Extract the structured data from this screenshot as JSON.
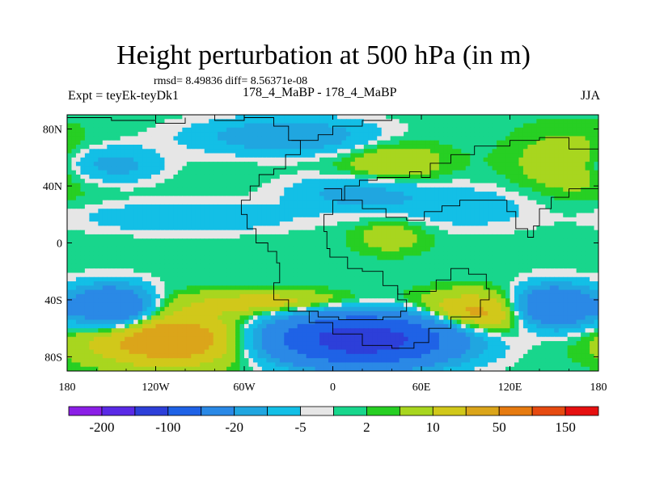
{
  "chart_data": {
    "type": "heatmap",
    "title": "Height perturbation at 500 hPa (in m)",
    "stats_text": "rmsd= 8.49836 diff= 8.56371e-08",
    "left_label": "Expt = teyEk-teyDk1",
    "center_label": "178_4_MaBP - 178_4_MaBP",
    "right_label": "JJA",
    "xlim": [
      -180,
      180
    ],
    "ylim": [
      -90,
      90
    ],
    "x_ticks": [
      {
        "value": -180,
        "label": "180"
      },
      {
        "value": -120,
        "label": "120W"
      },
      {
        "value": -60,
        "label": "60W"
      },
      {
        "value": 0,
        "label": "0"
      },
      {
        "value": 60,
        "label": "60E"
      },
      {
        "value": 120,
        "label": "120E"
      },
      {
        "value": 180,
        "label": "180"
      }
    ],
    "y_ticks": [
      {
        "value": 80,
        "label": "80N"
      },
      {
        "value": 40,
        "label": "40N"
      },
      {
        "value": 0,
        "label": "0"
      },
      {
        "value": -40,
        "label": "40S"
      },
      {
        "value": -80,
        "label": "80S"
      }
    ],
    "colorbar": {
      "colors": [
        "#8b1fe6",
        "#5a2ae6",
        "#2d3fd9",
        "#1f62e6",
        "#2a89e6",
        "#20a6e0",
        "#13bfe6",
        "#e6e6e6",
        "#18d68c",
        "#27cf23",
        "#a8d61f",
        "#d1c81a",
        "#dba51a",
        "#e67b10",
        "#e64a10",
        "#e61010"
      ],
      "labels": [
        {
          "index": 1,
          "text": "-200"
        },
        {
          "index": 3,
          "text": "-100"
        },
        {
          "index": 5,
          "text": "-20"
        },
        {
          "index": 7,
          "text": "-5"
        },
        {
          "index": 9,
          "text": "2"
        },
        {
          "index": 11,
          "text": "10"
        },
        {
          "index": 13,
          "text": "50"
        },
        {
          "index": 15,
          "text": "150"
        }
      ]
    },
    "anomalies": [
      {
        "lon": -150,
        "lat": -45,
        "amp": -40,
        "rlon": 25,
        "rlat": 14
      },
      {
        "lon": 150,
        "lat": -45,
        "amp": -40,
        "rlon": 25,
        "rlat": 14
      },
      {
        "lon": 20,
        "lat": -68,
        "amp": -110,
        "rlon": 55,
        "rlat": 16
      },
      {
        "lon": -110,
        "lat": -68,
        "amp": 25,
        "rlon": 55,
        "rlat": 18
      },
      {
        "lon": 95,
        "lat": -50,
        "amp": 20,
        "rlon": 40,
        "rlat": 14
      },
      {
        "lon": -40,
        "lat": -42,
        "amp": 12,
        "rlon": 60,
        "rlat": 8
      },
      {
        "lon": -30,
        "lat": 75,
        "amp": -15,
        "rlon": 60,
        "rlat": 12
      },
      {
        "lon": 40,
        "lat": 55,
        "amp": 8,
        "rlon": 35,
        "rlat": 18
      },
      {
        "lon": 20,
        "lat": 35,
        "amp": -12,
        "rlon": 45,
        "rlat": 12
      },
      {
        "lon": 160,
        "lat": 55,
        "amp": 6,
        "rlon": 40,
        "rlat": 25
      },
      {
        "lon": -150,
        "lat": 55,
        "amp": -12,
        "rlon": 30,
        "rlat": 12
      },
      {
        "lon": -100,
        "lat": 18,
        "amp": -8,
        "rlon": 70,
        "rlat": 10
      },
      {
        "lon": 40,
        "lat": 5,
        "amp": 6,
        "rlon": 25,
        "rlat": 12
      },
      {
        "lon": 90,
        "lat": 25,
        "amp": -6,
        "rlon": 50,
        "rlat": 15
      }
    ]
  }
}
